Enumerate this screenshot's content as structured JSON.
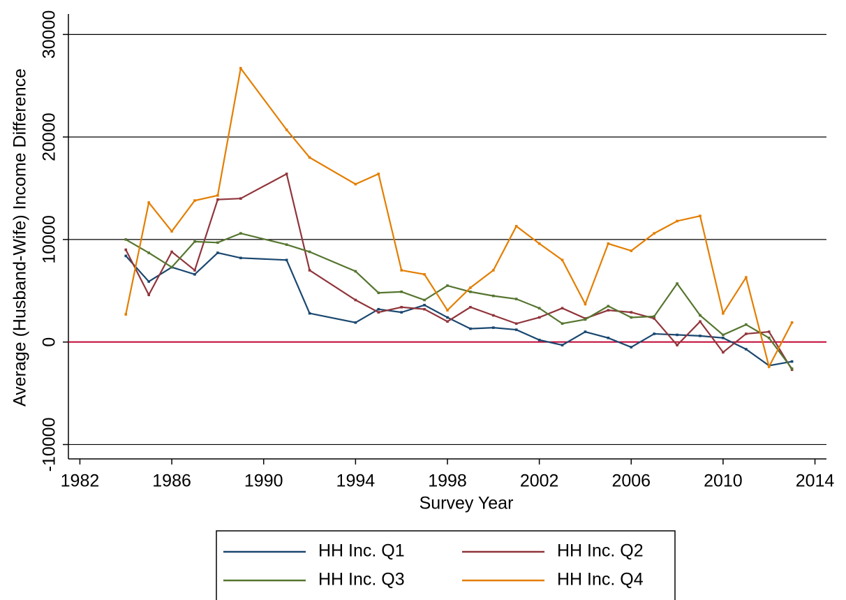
{
  "chart_data": {
    "type": "line",
    "x_label": "Survey Year",
    "y_label": "Average (Husband-Wife) Income Difference",
    "x": [
      1984,
      1985,
      1986,
      1987,
      1988,
      1989,
      1991,
      1992,
      1994,
      1995,
      1996,
      1997,
      1998,
      1999,
      2000,
      2001,
      2002,
      2003,
      2004,
      2005,
      2006,
      2007,
      2008,
      2009,
      2010,
      2011,
      2012,
      2013
    ],
    "series": [
      {
        "name": "HH Inc. Q1",
        "color": "#1a476f",
        "values": [
          8400,
          5900,
          7300,
          6600,
          8700,
          8200,
          8000,
          2800,
          1900,
          3200,
          2900,
          3600,
          2400,
          1300,
          1400,
          1200,
          200,
          -300,
          1000,
          400,
          -500,
          800,
          700,
          600,
          400,
          -700,
          -2300,
          -1900
        ]
      },
      {
        "name": "HH Inc. Q2",
        "color": "#90353b",
        "values": [
          9000,
          4600,
          8800,
          7000,
          13900,
          14000,
          16400,
          7000,
          4100,
          2900,
          3400,
          3200,
          2000,
          3400,
          2600,
          1800,
          2400,
          3300,
          2300,
          3100,
          2900,
          2300,
          -300,
          2000,
          -1000,
          800,
          1000,
          -2700
        ]
      },
      {
        "name": "HH Inc. Q3",
        "color": "#55752f",
        "values": [
          10000,
          8700,
          7300,
          9800,
          9700,
          10600,
          9500,
          8800,
          6900,
          4800,
          4900,
          4100,
          5500,
          4900,
          4500,
          4200,
          3300,
          1800,
          2200,
          3500,
          2400,
          2500,
          5700,
          2600,
          700,
          1700,
          400,
          -2600
        ]
      },
      {
        "name": "HH Inc. Q4",
        "color": "#e37e00",
        "values": [
          2700,
          13600,
          10800,
          13800,
          14300,
          26700,
          20700,
          18000,
          15400,
          16400,
          7000,
          6600,
          3100,
          5300,
          7000,
          11300,
          9600,
          8000,
          3700,
          9600,
          8900,
          10600,
          11800,
          12300,
          2800,
          6300,
          -2400,
          1900
        ]
      }
    ],
    "xlim": [
      1981.5,
      2014.5
    ],
    "xticks": [
      1982,
      1986,
      1990,
      1994,
      1998,
      2002,
      2006,
      2010,
      2014
    ],
    "ylim": [
      -11400,
      32000
    ],
    "yticks": [
      -10000,
      0,
      10000,
      20000,
      30000
    ],
    "grid": true,
    "reference_line": {
      "value": 0,
      "color": "#c10534"
    },
    "legend": "bottom"
  }
}
